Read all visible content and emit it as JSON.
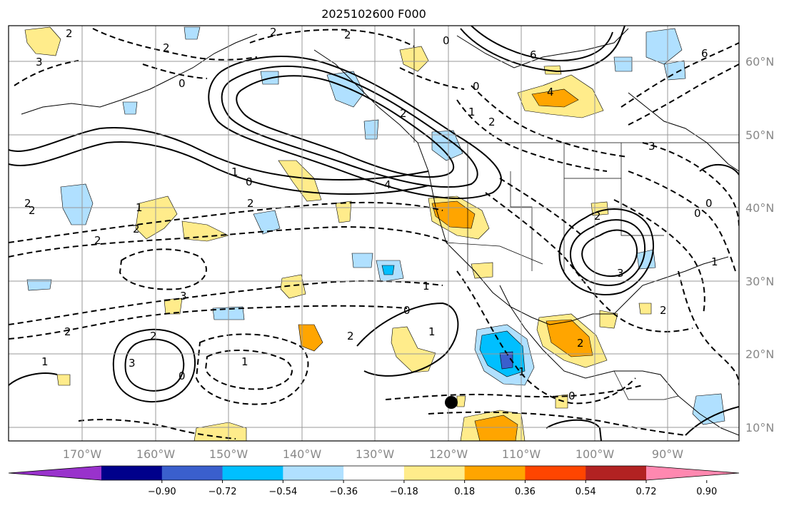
{
  "title": "2025102600 F000",
  "map": {
    "lat_labels": [
      "60°N",
      "50°N",
      "40°N",
      "30°N",
      "20°N",
      "10°N"
    ],
    "lon_labels": [
      "170°W",
      "160°W",
      "150°W",
      "140°W",
      "130°W",
      "120°W",
      "110°W",
      "100°W",
      "90°W"
    ]
  },
  "colorbar": {
    "colors": [
      "#9932cc",
      "#00008b",
      "#3a5fcd",
      "#00bfff",
      "#b0e0ff",
      "#ffffff",
      "#ffec8b",
      "#ffa500",
      "#ff4500",
      "#b22222",
      "#ff88b0"
    ],
    "tick_labels": [
      "−0.90",
      "−0.72",
      "−0.54",
      "−0.36",
      "−0.18",
      "0.18",
      "0.36",
      "0.54",
      "0.72",
      "0.90"
    ]
  },
  "contour_labels": [
    "2",
    "2",
    "2",
    "2",
    "0",
    "6",
    "4",
    "2",
    "1",
    "2",
    "0",
    "0",
    "3",
    "6",
    "2",
    "2",
    "0",
    "2",
    "1",
    "4",
    "3",
    "1",
    "0",
    "1",
    "2",
    "2",
    "1",
    "2",
    "2",
    "3",
    "3",
    "0",
    "0",
    "3",
    "0",
    "2",
    "1",
    "0",
    "2",
    "1",
    "1",
    "1",
    "2",
    "2"
  ],
  "colors": {
    "warm": "#ffa500",
    "cool": "#00bfff",
    "grid": "#999999"
  }
}
